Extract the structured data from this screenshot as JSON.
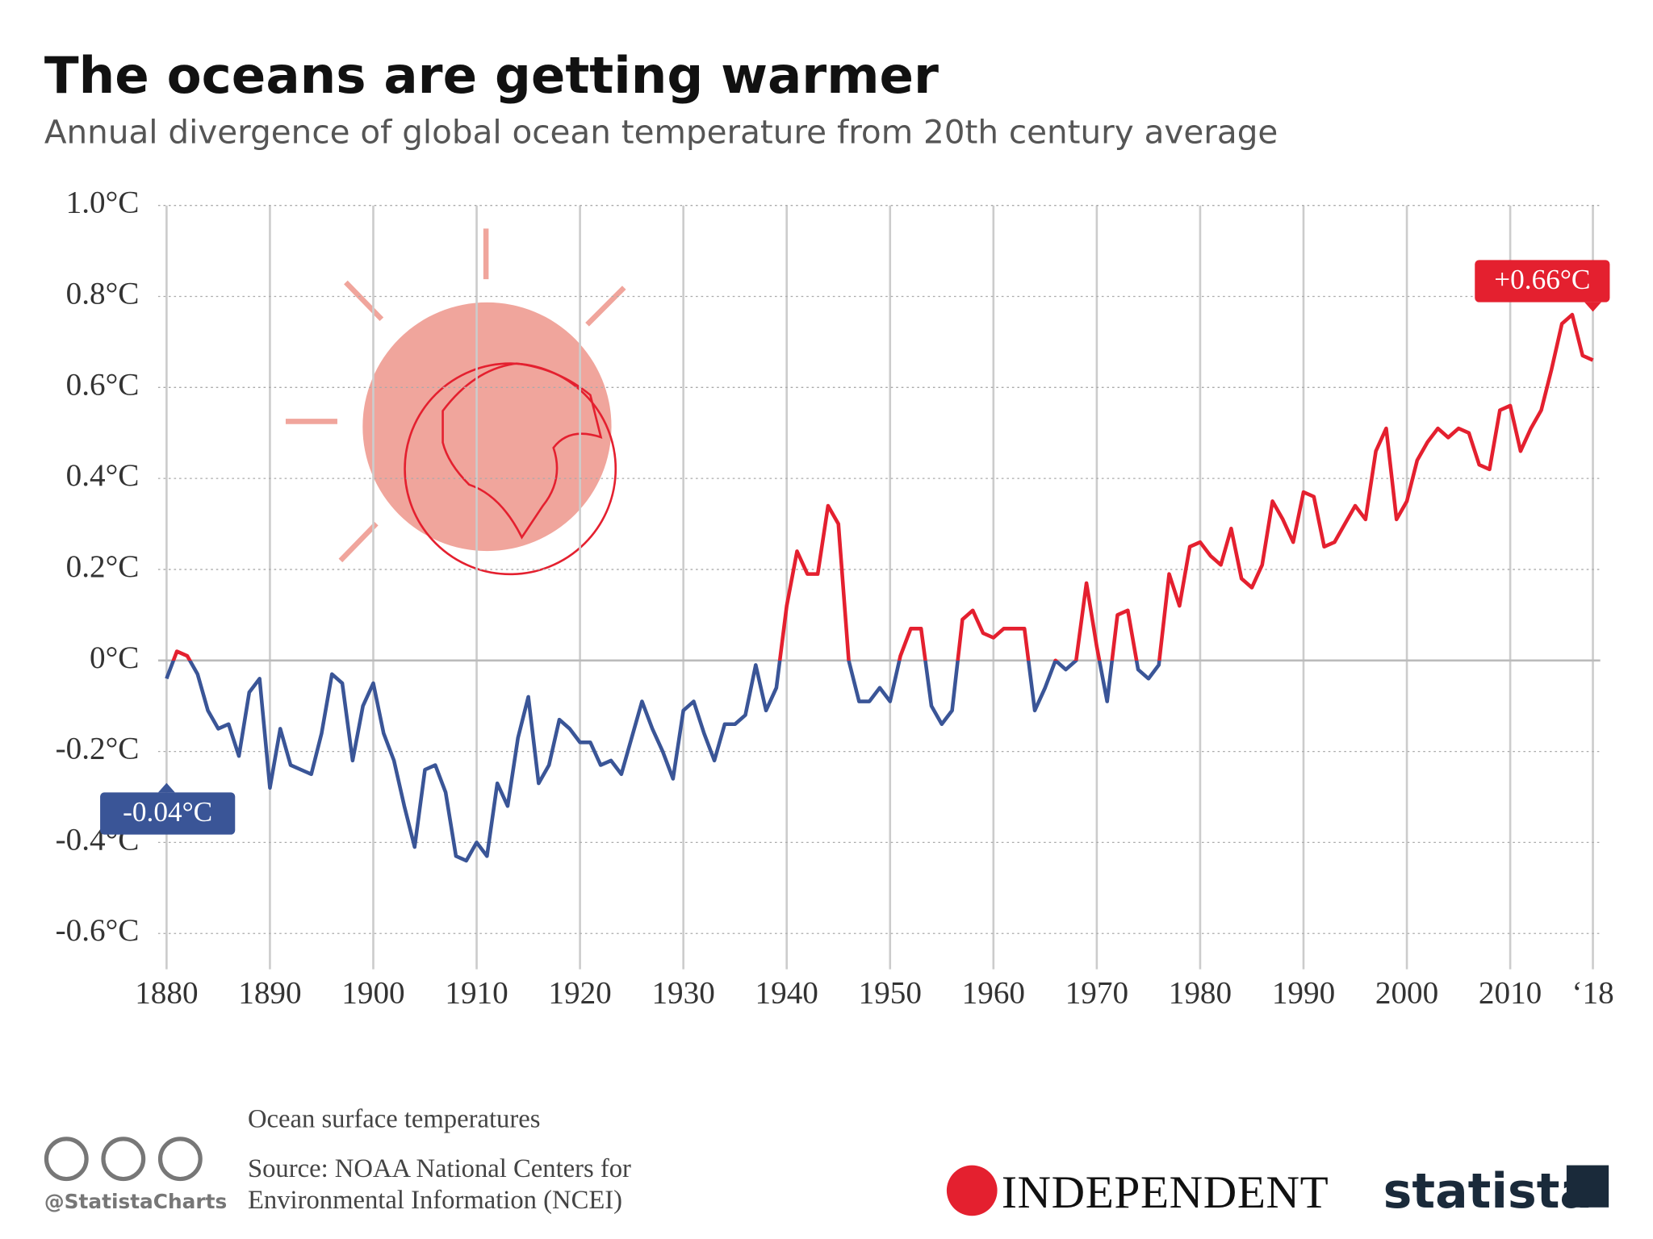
{
  "title": "The oceans are getting warmer",
  "subtitle": "Annual divergence of global ocean temperature from 20th century average",
  "chart_data": {
    "type": "line",
    "x": [
      1880,
      1881,
      1882,
      1883,
      1884,
      1885,
      1886,
      1887,
      1888,
      1889,
      1890,
      1891,
      1892,
      1893,
      1894,
      1895,
      1896,
      1897,
      1898,
      1899,
      1900,
      1901,
      1902,
      1903,
      1904,
      1905,
      1906,
      1907,
      1908,
      1909,
      1910,
      1911,
      1912,
      1913,
      1914,
      1915,
      1916,
      1917,
      1918,
      1919,
      1920,
      1921,
      1922,
      1923,
      1924,
      1925,
      1926,
      1927,
      1928,
      1929,
      1930,
      1931,
      1932,
      1933,
      1934,
      1935,
      1936,
      1937,
      1938,
      1939,
      1940,
      1941,
      1942,
      1943,
      1944,
      1945,
      1946,
      1947,
      1948,
      1949,
      1950,
      1951,
      1952,
      1953,
      1954,
      1955,
      1956,
      1957,
      1958,
      1959,
      1960,
      1961,
      1962,
      1963,
      1964,
      1965,
      1966,
      1967,
      1968,
      1969,
      1970,
      1971,
      1972,
      1973,
      1974,
      1975,
      1976,
      1977,
      1978,
      1979,
      1980,
      1981,
      1982,
      1983,
      1984,
      1985,
      1986,
      1987,
      1988,
      1989,
      1990,
      1991,
      1992,
      1993,
      1994,
      1995,
      1996,
      1997,
      1998,
      1999,
      2000,
      2001,
      2002,
      2003,
      2004,
      2005,
      2006,
      2007,
      2008,
      2009,
      2010,
      2011,
      2012,
      2013,
      2014,
      2015,
      2016,
      2017,
      2018
    ],
    "values": [
      -0.04,
      0.02,
      0.01,
      -0.03,
      -0.11,
      -0.15,
      -0.14,
      -0.21,
      -0.07,
      -0.04,
      -0.28,
      -0.15,
      -0.23,
      -0.24,
      -0.25,
      -0.16,
      -0.03,
      -0.05,
      -0.22,
      -0.1,
      -0.05,
      -0.16,
      -0.22,
      -0.32,
      -0.41,
      -0.24,
      -0.23,
      -0.29,
      -0.43,
      -0.44,
      -0.4,
      -0.43,
      -0.27,
      -0.32,
      -0.17,
      -0.08,
      -0.27,
      -0.23,
      -0.13,
      -0.15,
      -0.18,
      -0.18,
      -0.23,
      -0.22,
      -0.25,
      -0.17,
      -0.09,
      -0.15,
      -0.2,
      -0.26,
      -0.11,
      -0.09,
      -0.16,
      -0.22,
      -0.14,
      -0.14,
      -0.12,
      -0.01,
      -0.11,
      -0.06,
      0.12,
      0.24,
      0.19,
      0.19,
      0.34,
      0.3,
      0.0,
      -0.09,
      -0.09,
      -0.06,
      -0.09,
      0.01,
      0.07,
      0.07,
      -0.1,
      -0.14,
      -0.11,
      0.09,
      0.11,
      0.06,
      0.05,
      0.07,
      0.07,
      0.07,
      -0.11,
      -0.06,
      0.0,
      -0.02,
      0.0,
      0.17,
      0.03,
      -0.09,
      0.1,
      0.11,
      -0.02,
      -0.04,
      -0.01,
      0.19,
      0.12,
      0.25,
      0.26,
      0.23,
      0.21,
      0.29,
      0.18,
      0.16,
      0.21,
      0.35,
      0.31,
      0.26,
      0.37,
      0.36,
      0.25,
      0.26,
      0.3,
      0.34,
      0.31,
      0.46,
      0.51,
      0.31,
      0.35,
      0.44,
      0.48,
      0.51,
      0.49,
      0.51,
      0.5,
      0.43,
      0.42,
      0.55,
      0.56,
      0.46,
      0.51,
      0.55,
      0.64,
      0.74,
      0.76,
      0.67,
      0.66
    ],
    "value_labels": [
      "-0.04°C",
      null,
      null,
      null,
      null,
      null,
      null,
      null,
      null,
      null,
      null,
      null,
      null,
      null,
      null,
      null,
      null,
      null,
      null,
      null,
      null,
      null,
      null,
      null,
      null,
      null,
      null,
      null,
      null,
      null,
      null,
      null,
      null,
      null,
      null,
      null,
      null,
      null,
      null,
      null,
      null,
      null,
      null,
      null,
      null,
      null,
      null,
      null,
      null,
      null,
      null,
      null,
      null,
      null,
      null,
      null,
      null,
      null,
      null,
      null,
      null,
      null,
      null,
      null,
      null,
      null,
      null,
      null,
      null,
      null,
      null,
      null,
      null,
      null,
      null,
      null,
      null,
      null,
      null,
      null,
      null,
      null,
      null,
      null,
      null,
      null,
      null,
      null,
      null,
      null,
      null,
      null,
      null,
      null,
      null,
      null,
      null,
      null,
      null,
      null,
      null,
      null,
      null,
      null,
      null,
      null,
      null,
      null,
      null,
      null,
      null,
      null,
      null,
      null,
      null,
      null,
      null,
      null,
      null,
      null,
      null,
      null,
      null,
      null,
      null,
      null,
      null,
      null,
      null,
      null,
      null,
      null,
      null,
      null,
      null,
      null,
      null,
      null,
      "+0.66°C"
    ],
    "color_above": "#e4202f",
    "color_below": "#3a5597",
    "xlim": [
      1880,
      2018
    ],
    "xticks": [
      1880,
      1890,
      1900,
      1910,
      1920,
      1930,
      1940,
      1950,
      1960,
      1970,
      1980,
      1990,
      2000,
      2010,
      {
        "value": 2018,
        "label": "‘18"
      }
    ],
    "ylim": [
      -0.6,
      1.0
    ],
    "yticks": [
      {
        "value": -0.6,
        "label": "-0.6°C"
      },
      {
        "value": -0.4,
        "label": "-0.4°C"
      },
      {
        "value": -0.2,
        "label": "-0.2°C"
      },
      {
        "value": 0,
        "label": "0°C"
      },
      {
        "value": 0.2,
        "label": "0.2°C"
      },
      {
        "value": 0.4,
        "label": "0.4°C"
      },
      {
        "value": 0.6,
        "label": "0.6°C"
      },
      {
        "value": 0.8,
        "label": "0.8°C"
      },
      {
        "value": 1.0,
        "label": "1.0°C"
      }
    ],
    "grid": true
  },
  "footer": {
    "note": "Ocean surface temperatures",
    "source": [
      "Source: NOAA National Centers for",
      "Environmental Information (NCEI)"
    ],
    "handle": "@StatistaCharts",
    "partner": "INDEPENDENT",
    "brand": "statista"
  }
}
